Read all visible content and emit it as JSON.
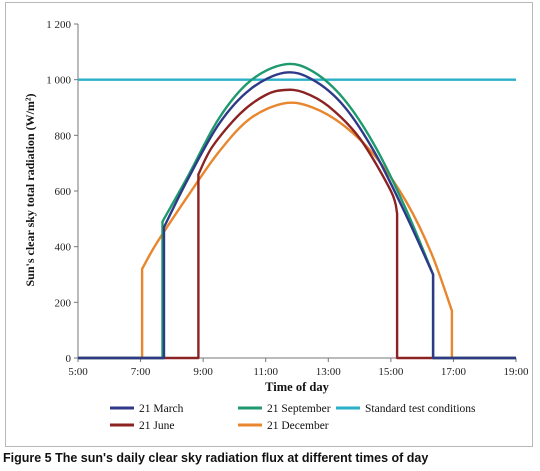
{
  "chart_data": {
    "type": "line",
    "xlabel": "Time of day",
    "ylabel": "Sun's clear sky total radiation (W/m²)",
    "x_ticks": [
      "5:00",
      "7:00",
      "9:00",
      "11:00",
      "13:00",
      "15:00",
      "17:00",
      "19:00"
    ],
    "y_ticks": [
      "0",
      "200",
      "400",
      "600",
      "800",
      "1 000",
      "1 200"
    ],
    "xlim": [
      5,
      19
    ],
    "ylim": [
      0,
      1200
    ],
    "grid": false,
    "legend_position": "bottom",
    "series": [
      {
        "name": "21 March",
        "color": "#2e3a87",
        "x": [
          5,
          7.75,
          7.75,
          8.5,
          9.5,
          10.5,
          11.6,
          12.5,
          13.5,
          14.5,
          15.5,
          16.35,
          16.35,
          19
        ],
        "y": [
          0,
          0,
          470,
          640,
          840,
          965,
          1025,
          1000,
          905,
          735,
          510,
          300,
          0,
          0
        ]
      },
      {
        "name": "21 June",
        "color": "#8b2323",
        "x": [
          5,
          8.85,
          8.85,
          9.3,
          10.2,
          11.0,
          11.6,
          12.2,
          13.0,
          14.0,
          15.0,
          15.2,
          15.2,
          19
        ],
        "y": [
          0,
          0,
          660,
          760,
          880,
          945,
          963,
          955,
          905,
          790,
          600,
          520,
          0,
          0
        ]
      },
      {
        "name": "21 September",
        "color": "#1e9a6e",
        "x": [
          5,
          7.7,
          7.7,
          8.5,
          9.5,
          10.5,
          11.6,
          12.5,
          13.5,
          14.5,
          15.5,
          16.35,
          16.35,
          19
        ],
        "y": [
          0,
          0,
          490,
          650,
          860,
          995,
          1055,
          1030,
          930,
          760,
          530,
          300,
          0,
          0
        ]
      },
      {
        "name": "21 December",
        "color": "#e8862e",
        "x": [
          5,
          7.05,
          7.05,
          7.5,
          8.5,
          9.5,
          10.5,
          11.6,
          12.5,
          13.5,
          14.5,
          15.5,
          16.3,
          16.95,
          16.95,
          19
        ],
        "y": [
          0,
          0,
          320,
          410,
          580,
          740,
          860,
          915,
          900,
          835,
          725,
          560,
          375,
          170,
          0,
          0
        ]
      },
      {
        "name": "Standard test conditions",
        "color": "#2ab0c8",
        "x": [
          5,
          19
        ],
        "y": [
          1000,
          1000
        ]
      }
    ],
    "legend_order": [
      "21 March",
      "21 September",
      "Standard test conditions",
      "21 June",
      "21 December"
    ]
  },
  "caption": {
    "label": "Figure 5",
    "text": "The sun's daily clear sky radiation flux at different times of day"
  }
}
